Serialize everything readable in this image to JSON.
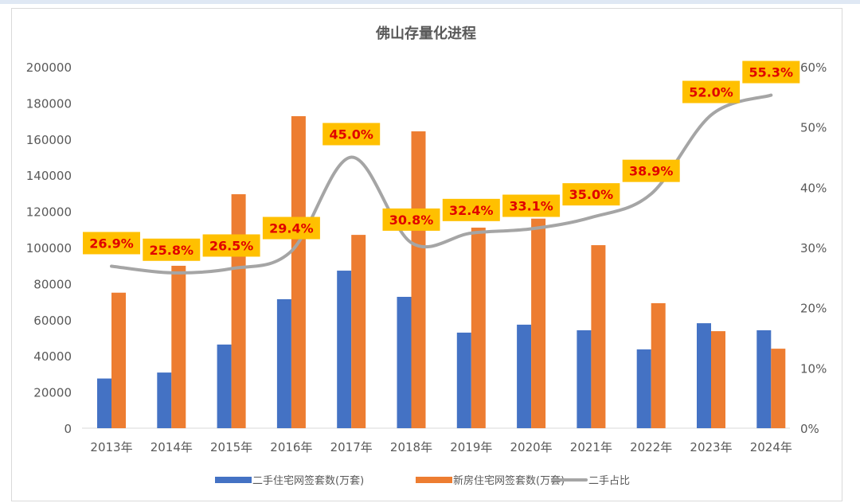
{
  "chart_data": {
    "type": "bar+line",
    "title": "佛山存量化进程",
    "categories": [
      "2013年",
      "2014年",
      "2015年",
      "2016年",
      "2017年",
      "2018年",
      "2019年",
      "2020年",
      "2021年",
      "2022年",
      "2023年",
      "2024年"
    ],
    "series": [
      {
        "name": "二手住宅网签套数(万套)",
        "type": "bar",
        "axis": "left",
        "color": "#4472C4",
        "values": [
          27500,
          30800,
          46300,
          71400,
          87200,
          72700,
          52900,
          57300,
          54200,
          43600,
          58100,
          54200
        ]
      },
      {
        "name": "新房住宅网签套数(万套)",
        "type": "bar",
        "axis": "left",
        "color": "#ED7D31",
        "values": [
          75000,
          89900,
          129500,
          172700,
          107000,
          164300,
          111000,
          116000,
          101300,
          69200,
          53700,
          44000
        ]
      },
      {
        "name": "二手占比",
        "type": "line",
        "axis": "right",
        "color": "#A5A5A5",
        "values": [
          26.9,
          25.8,
          26.5,
          29.4,
          45.0,
          30.8,
          32.4,
          33.1,
          35.0,
          38.9,
          52.0,
          55.3
        ],
        "labels": [
          "26.9%",
          "25.8%",
          "26.5%",
          "29.4%",
          "45.0%",
          "30.8%",
          "32.4%",
          "33.1%",
          "35.0%",
          "38.9%",
          "52.0%",
          "55.3%"
        ]
      }
    ],
    "ylim_left": [
      0,
      200000
    ],
    "yticks_left": [
      "0",
      "20000",
      "40000",
      "60000",
      "80000",
      "100000",
      "120000",
      "140000",
      "160000",
      "180000",
      "200000"
    ],
    "ylim_right": [
      0,
      60
    ],
    "yticks_right": [
      "0%",
      "10%",
      "20%",
      "30%",
      "40%",
      "50%",
      "60%"
    ],
    "grid": false,
    "legend": "bottom",
    "label_box_color": "#FFC000",
    "label_text_color": "#E00000"
  }
}
